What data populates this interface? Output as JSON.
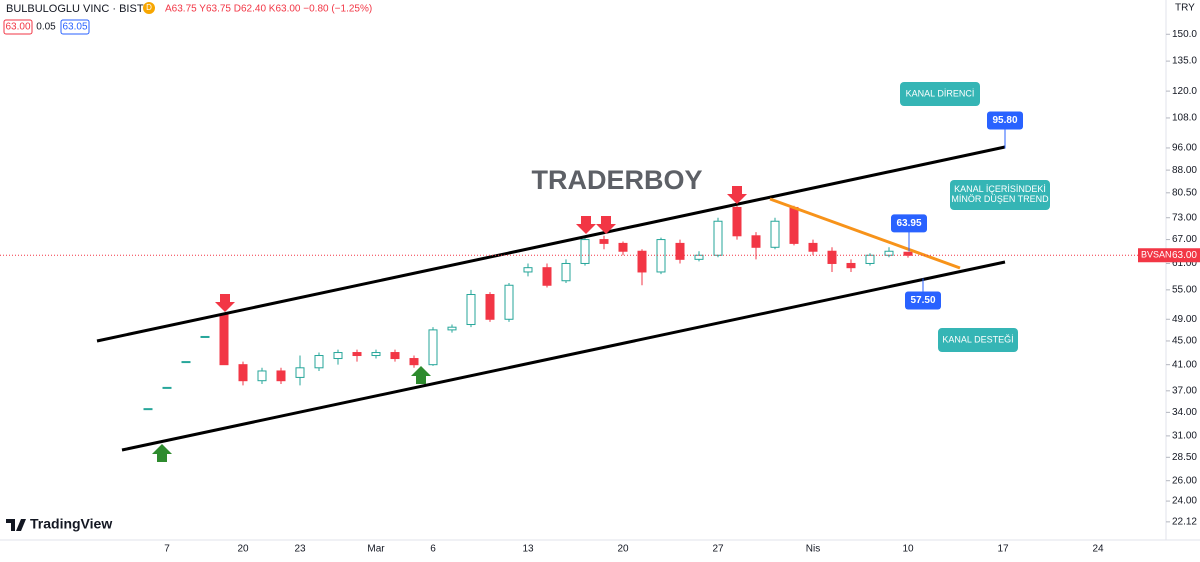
{
  "header": {
    "symbol": "BULBULOGLU VINC · BIST",
    "badge": "D",
    "ohlc": "A63.75 Y63.75 D62.40 K63.00 −0.80 (−1.25%)",
    "bid": "63.00",
    "spread": "0.05",
    "ask": "63.05",
    "currency": "TRY"
  },
  "logo": "TradingView",
  "chart_data": {
    "type": "candlestick",
    "log_scale": true,
    "up_color": "#26a69a",
    "down_color": "#f23645",
    "categories": [
      null,
      "7",
      null,
      null,
      null,
      "20",
      null,
      null,
      "23",
      null,
      null,
      null,
      "Mar",
      null,
      null,
      "6",
      null,
      null,
      null,
      null,
      "13",
      null,
      null,
      null,
      null,
      "20",
      null,
      null,
      null,
      null,
      "27",
      null,
      null,
      null,
      null,
      "Nis",
      null,
      null,
      null,
      null,
      "10",
      null,
      null,
      null,
      null,
      "17",
      null,
      null,
      null,
      null,
      "24"
    ],
    "open": [
      34.5,
      37.5,
      41.5,
      45.8,
      50,
      41,
      38.5,
      40,
      39,
      40.5,
      42,
      43,
      42.5,
      43,
      42,
      41,
      47,
      48,
      54,
      49,
      59,
      60,
      57,
      61,
      67,
      66,
      64,
      59,
      66,
      62,
      63,
      76,
      68,
      65,
      76,
      66,
      64,
      61,
      61,
      63,
      63.75,
      null,
      null,
      null,
      null,
      null,
      null,
      null,
      null,
      null,
      null
    ],
    "high": [
      34.5,
      37.5,
      41.5,
      45.8,
      50,
      41.5,
      40.5,
      40.5,
      42.5,
      43,
      43.5,
      43.5,
      43.5,
      43.5,
      42.5,
      47.5,
      48,
      55,
      54.5,
      56.5,
      61,
      61,
      62,
      68,
      68,
      66.5,
      64.5,
      67.5,
      67,
      64,
      73,
      76.5,
      69,
      73,
      76.5,
      67,
      65,
      62,
      63.5,
      65,
      63.75,
      null,
      null,
      null,
      null,
      null,
      null,
      null,
      null,
      null,
      null
    ],
    "low": [
      34.5,
      37.5,
      41.5,
      45.8,
      41,
      37.8,
      38,
      38,
      37.8,
      40,
      41,
      41.5,
      42,
      41.5,
      40.5,
      40.8,
      46.5,
      47.5,
      48.5,
      48.5,
      58,
      55.5,
      56.5,
      60.5,
      64.5,
      63,
      56,
      58.5,
      61,
      61.5,
      62.5,
      67,
      62,
      64.5,
      65.5,
      63,
      59,
      59,
      60.5,
      62.5,
      62.4,
      null,
      null,
      null,
      null,
      null,
      null,
      null,
      null,
      null,
      null
    ],
    "close": [
      34.5,
      37.5,
      41.5,
      45.8,
      41,
      38.5,
      40,
      38.5,
      40.5,
      42.5,
      43,
      42.5,
      43,
      42,
      41,
      47,
      47.5,
      54,
      49,
      56,
      60,
      56,
      61,
      67,
      66,
      64,
      59,
      67,
      62,
      63,
      72,
      68,
      65,
      72,
      66,
      64,
      61,
      60,
      63,
      64,
      63,
      null,
      null,
      null,
      null,
      null,
      null,
      null,
      null,
      null,
      null
    ],
    "ylim": [
      20.6,
      171.6
    ],
    "yticks": [
      {
        "value": 150,
        "label": "150.0"
      },
      {
        "value": 135,
        "label": "135.0"
      },
      {
        "value": 120,
        "label": "120.0"
      },
      {
        "value": 108,
        "label": "108.0"
      },
      {
        "value": 96,
        "label": "96.00"
      },
      {
        "value": 88,
        "label": "88.00"
      },
      {
        "value": 80.5,
        "label": "80.50"
      },
      {
        "value": 73,
        "label": "73.00"
      },
      {
        "value": 67,
        "label": "67.00"
      },
      {
        "value": 61,
        "label": "61.00"
      },
      {
        "value": 55,
        "label": "55.00"
      },
      {
        "value": 49,
        "label": "49.00"
      },
      {
        "value": 45,
        "label": "45.00"
      },
      {
        "value": 41,
        "label": "41.00"
      },
      {
        "value": 37,
        "label": "37.00"
      },
      {
        "value": 34,
        "label": "34.00"
      },
      {
        "value": 31,
        "label": "31.00"
      },
      {
        "value": 28.5,
        "label": "28.50"
      },
      {
        "value": 26,
        "label": "26.00"
      },
      {
        "value": 24,
        "label": "24.00"
      },
      {
        "value": 22.12,
        "label": "22.12"
      }
    ],
    "last_price": {
      "name": "BVSAN",
      "value": 63,
      "label": "63.00"
    },
    "price_marks": [
      {
        "value": 95.8,
        "label": "95.80"
      },
      {
        "value": 63.95,
        "label": "63.95"
      },
      {
        "value": 57.5,
        "label": "57.50"
      }
    ],
    "annotations": [
      "TRADERBOY",
      "KANAL DİRENCİ",
      "KANAL İÇERİSİNDEKİ MİNÖR DÜŞEN TREND",
      "KANAL DESTEĞİ"
    ]
  }
}
